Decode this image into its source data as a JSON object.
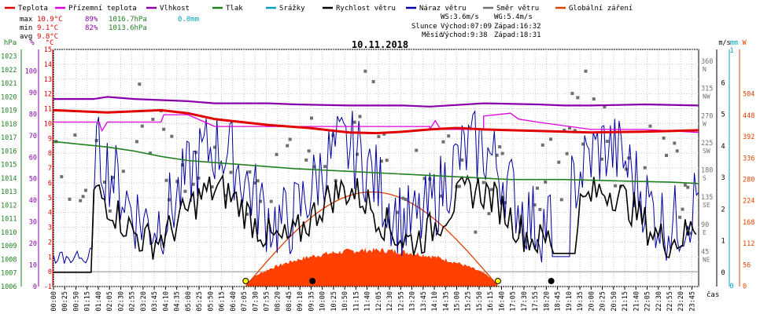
{
  "chart_data": {
    "type": "line",
    "title": "10.11.2018",
    "legend": [
      {
        "name": "Teplota",
        "color": "#e00000"
      },
      {
        "name": "Přízemní teplota",
        "color": "#e000e0"
      },
      {
        "name": "Vlhkost",
        "color": "#8800aa"
      },
      {
        "name": "Tlak",
        "color": "#208020"
      },
      {
        "name": "Srážky",
        "color": "#00a0c0"
      },
      {
        "name": "Rychlost větru",
        "color": "#000000"
      },
      {
        "name": "Náraz větru",
        "color": "#0000a0"
      },
      {
        "name": "Směr větru",
        "color": "#707070"
      },
      {
        "name": "Globální záření",
        "color": "#e04000"
      }
    ],
    "stats": {
      "max_label": "max",
      "min_label": "min",
      "avg_label": "avg",
      "max_temp": "10.9°C",
      "max_hum": "89%",
      "max_press": "1016.7hPa",
      "max_rain": "0.0mm",
      "min_temp": "9.1°C",
      "min_hum": "82%",
      "min_press": "1013.6hPa",
      "avg_temp": "9.8°C"
    },
    "wind_info": {
      "ws": "WS:3.6m/s",
      "wg": "WG:5.4m/s"
    },
    "sun": {
      "label": "Slunce",
      "rise": "Východ:07:09",
      "set": "Západ:16:32"
    },
    "moon": {
      "label": "Měsíc",
      "rise": "Východ:9:38",
      "set": "Západ:18:31"
    },
    "axes": {
      "hpa_unit": "hPa",
      "pct_unit": "%",
      "c_unit": "°C",
      "ms_unit": "m/s",
      "mm_unit": "mm",
      "w_unit": "W",
      "time_unit": "čas",
      "hpa_ticks": [
        "1023",
        "1022",
        "1021",
        "1020",
        "1019",
        "1018",
        "1017",
        "1016",
        "1015",
        "1014",
        "1013",
        "1012",
        "1011",
        "1010",
        "1009",
        "1008",
        "1007",
        "1006"
      ],
      "pct_ticks": [
        "100",
        "90",
        "80",
        "70",
        "60",
        "50",
        "40",
        "30",
        "20",
        "10",
        "0"
      ],
      "c_ticks": [
        "15",
        "14",
        "13",
        "12",
        "11",
        "10",
        "9",
        "8",
        "7",
        "6",
        "5",
        "4",
        "3",
        "2",
        "1",
        "0",
        "-1"
      ],
      "dir_ticks": [
        {
          "deg": "360",
          "dir": "N",
          "v": 360
        },
        {
          "deg": "315",
          "dir": "NW",
          "v": 315
        },
        {
          "deg": "270",
          "dir": "W",
          "v": 270
        },
        {
          "deg": "225",
          "dir": "SW",
          "v": 225
        },
        {
          "deg": "180",
          "dir": "S",
          "v": 180
        },
        {
          "deg": "135",
          "dir": "SE",
          "v": 135
        },
        {
          "deg": "90",
          "dir": "E",
          "v": 90
        },
        {
          "deg": "45",
          "dir": "NE",
          "v": 45
        }
      ],
      "ms_ticks": [
        "6",
        "5",
        "4",
        "3",
        "2",
        "1",
        "0"
      ],
      "mm_ticks": [
        "1",
        "0"
      ],
      "w_ticks": [
        "504",
        "448",
        "392",
        "336",
        "280",
        "224",
        "168",
        "112",
        "56",
        "0"
      ],
      "time_ticks": [
        "00:00",
        "00:25",
        "00:50",
        "01:15",
        "01:40",
        "02:05",
        "02:30",
        "02:55",
        "03:20",
        "03:45",
        "04:10",
        "04:35",
        "05:00",
        "05:25",
        "05:50",
        "06:15",
        "06:40",
        "07:05",
        "07:30",
        "07:55",
        "08:20",
        "08:45",
        "09:10",
        "09:35",
        "10:00",
        "10:25",
        "10:50",
        "11:15",
        "11:40",
        "12:05",
        "12:30",
        "12:55",
        "13:20",
        "13:45",
        "14:10",
        "14:35",
        "15:00",
        "15:25",
        "15:50",
        "16:15",
        "16:40",
        "17:05",
        "17:30",
        "17:55",
        "18:20",
        "18:45",
        "19:10",
        "19:35",
        "20:00",
        "20:25",
        "20:50",
        "21:15",
        "21:40",
        "22:05",
        "22:30",
        "22:55",
        "23:20",
        "23:45"
      ]
    },
    "series": {
      "temperature": [
        [
          0,
          10.9
        ],
        [
          2,
          10.75
        ],
        [
          4,
          10.9
        ],
        [
          5,
          10.7
        ],
        [
          6,
          10.3
        ],
        [
          7,
          10.1
        ],
        [
          8,
          9.9
        ],
        [
          9.5,
          9.7
        ],
        [
          11,
          9.4
        ],
        [
          12,
          9.35
        ],
        [
          13,
          9.45
        ],
        [
          14,
          9.6
        ],
        [
          15,
          9.7
        ],
        [
          16,
          9.6
        ],
        [
          18,
          9.5
        ],
        [
          20,
          9.4
        ],
        [
          22,
          9.45
        ],
        [
          24,
          9.55
        ]
      ],
      "ground_temperature": [
        [
          0,
          10.1
        ],
        [
          1.7,
          10.1
        ],
        [
          1.8,
          9.5
        ],
        [
          2,
          10.1
        ],
        [
          4,
          10.1
        ],
        [
          4.1,
          10.6
        ],
        [
          5,
          10.6
        ],
        [
          6,
          9.8
        ],
        [
          14,
          9.8
        ],
        [
          14,
          9.6
        ],
        [
          14.2,
          10.2
        ],
        [
          14.4,
          9.6
        ],
        [
          16,
          9.6
        ],
        [
          16,
          10.5
        ],
        [
          17,
          10.7
        ],
        [
          17.3,
          10.3
        ],
        [
          18,
          10.1
        ],
        [
          20,
          9.6
        ],
        [
          22,
          9.6
        ],
        [
          24,
          9.4
        ]
      ],
      "humidity": [
        [
          0,
          87
        ],
        [
          1.5,
          87
        ],
        [
          2,
          88
        ],
        [
          3,
          87
        ],
        [
          5,
          86
        ],
        [
          6,
          85
        ],
        [
          8,
          85
        ],
        [
          9,
          84.5
        ],
        [
          11,
          84
        ],
        [
          13,
          84
        ],
        [
          14,
          83.5
        ],
        [
          16,
          85
        ],
        [
          18,
          84.5
        ],
        [
          19,
          84
        ],
        [
          20,
          84
        ],
        [
          22,
          84.5
        ],
        [
          24,
          84
        ]
      ],
      "pressure": [
        [
          0,
          1016.7
        ],
        [
          1,
          1016.5
        ],
        [
          2,
          1016.3
        ],
        [
          3,
          1016
        ],
        [
          4,
          1015.6
        ],
        [
          5,
          1015.3
        ],
        [
          7,
          1015
        ],
        [
          9,
          1014.7
        ],
        [
          11,
          1014.5
        ],
        [
          13,
          1014.3
        ],
        [
          15,
          1014.1
        ],
        [
          17,
          1013.9
        ],
        [
          19,
          1013.9
        ],
        [
          21,
          1013.8
        ],
        [
          23,
          1013.7
        ],
        [
          24,
          1013.6
        ]
      ],
      "radiation_peak_wm2": 290
    }
  }
}
